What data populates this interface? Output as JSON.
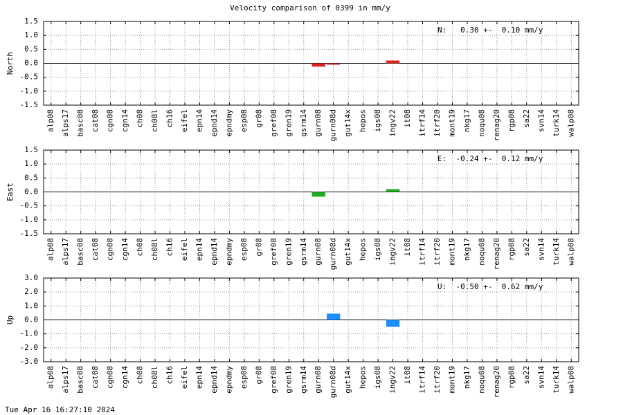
{
  "title": "Velocity comparison of 0399 in mm/y",
  "timestamp": "Tue Apr 16 16:27:10 2024",
  "chart_data": [
    {
      "type": "bar",
      "ylabel": "North",
      "annotation": "N:   0.30 +-  0.10 mm/y",
      "color": "#dd2222",
      "categories": [
        "alp08",
        "alps17",
        "basc08",
        "cat08",
        "cgn08",
        "cgn14",
        "ch08",
        "ch08l",
        "ch16",
        "eifel",
        "epn14",
        "epnd14",
        "epndmy",
        "esp08",
        "gr08",
        "gref08",
        "gren19",
        "gsrm14",
        "gurn08",
        "gurn08d",
        "gut14x",
        "hepos",
        "igs08",
        "ingv22",
        "it08",
        "itrf14",
        "itrf20",
        "mont19",
        "nkg17",
        "noqu08",
        "renag20",
        "rgp08",
        "sa22",
        "svn14",
        "turk14",
        "walp08"
      ],
      "values": [
        null,
        null,
        null,
        null,
        null,
        null,
        null,
        null,
        null,
        null,
        null,
        null,
        null,
        null,
        null,
        null,
        null,
        null,
        -0.12,
        -0.05,
        null,
        null,
        null,
        0.1,
        null,
        null,
        null,
        null,
        null,
        null,
        null,
        null,
        null,
        null,
        null,
        null
      ],
      "ylim": [
        -1.5,
        1.5
      ],
      "yticks": [
        1.5,
        {
          "value": 1.0,
          "label": "1.0"
        },
        0.5,
        {
          "value": 0.0,
          "label": "0.0"
        },
        -0.5,
        {
          "value": -1.0,
          "label": "-1.0"
        },
        -1.5
      ],
      "grid": true
    },
    {
      "type": "bar",
      "ylabel": "East",
      "annotation": "E:  -0.24 +-  0.12 mm/y",
      "color": "#22aa22",
      "categories": [
        "alp08",
        "alps17",
        "basc08",
        "cat08",
        "cgn08",
        "cgn14",
        "ch08",
        "ch08l",
        "ch16",
        "eifel",
        "epn14",
        "epnd14",
        "epndmy",
        "esp08",
        "gr08",
        "gref08",
        "gren19",
        "gsrm14",
        "gurn08",
        "gurn08d",
        "gut14x",
        "hepos",
        "igs08",
        "ingv22",
        "it08",
        "itrf14",
        "itrf20",
        "mont19",
        "nkg17",
        "noqu08",
        "renag20",
        "rgp08",
        "sa22",
        "svn14",
        "turk14",
        "walp08"
      ],
      "values": [
        null,
        null,
        null,
        null,
        null,
        null,
        null,
        null,
        null,
        null,
        null,
        null,
        null,
        null,
        null,
        null,
        null,
        null,
        -0.17,
        null,
        null,
        null,
        null,
        0.1,
        null,
        null,
        null,
        null,
        null,
        null,
        null,
        null,
        null,
        null,
        null,
        null
      ],
      "ylim": [
        -1.5,
        1.5
      ],
      "yticks": [
        1.5,
        {
          "value": 1.0,
          "label": "1.0"
        },
        0.5,
        {
          "value": 0.0,
          "label": "0.0"
        },
        -0.5,
        {
          "value": -1.0,
          "label": "-1.0"
        },
        -1.5
      ],
      "grid": true
    },
    {
      "type": "bar",
      "ylabel": "Up",
      "annotation": "U:  -0.50 +-  0.62 mm/y",
      "color": "#1e8fff",
      "categories": [
        "alp08",
        "alps17",
        "basc08",
        "cat08",
        "cgn08",
        "cgn14",
        "ch08",
        "ch08l",
        "ch16",
        "eifel",
        "epn14",
        "epnd14",
        "epndmy",
        "esp08",
        "gr08",
        "gref08",
        "gren19",
        "gsrm14",
        "gurn08",
        "gurn08d",
        "gut14x",
        "hepos",
        "igs08",
        "ingv22",
        "it08",
        "itrf14",
        "itrf20",
        "mont19",
        "nkg17",
        "noqu08",
        "renag20",
        "rgp08",
        "sa22",
        "svn14",
        "turk14",
        "walp08"
      ],
      "values": [
        null,
        null,
        null,
        null,
        null,
        null,
        null,
        null,
        null,
        null,
        null,
        null,
        null,
        null,
        null,
        null,
        null,
        null,
        null,
        0.45,
        null,
        null,
        null,
        -0.5,
        null,
        null,
        null,
        null,
        null,
        null,
        null,
        null,
        null,
        null,
        null,
        null
      ],
      "ylim": [
        -3,
        3
      ],
      "yticks": [
        {
          "value": 3.0,
          "label": "3.0"
        },
        {
          "value": 2.0,
          "label": "2.0"
        },
        {
          "value": 1.0,
          "label": "1.0"
        },
        {
          "value": 0.0,
          "label": "0.0"
        },
        {
          "value": -1.0,
          "label": "-1.0"
        },
        {
          "value": -2.0,
          "label": "-2.0"
        },
        {
          "value": -3.0,
          "label": "-3.0"
        }
      ],
      "grid": true
    }
  ]
}
